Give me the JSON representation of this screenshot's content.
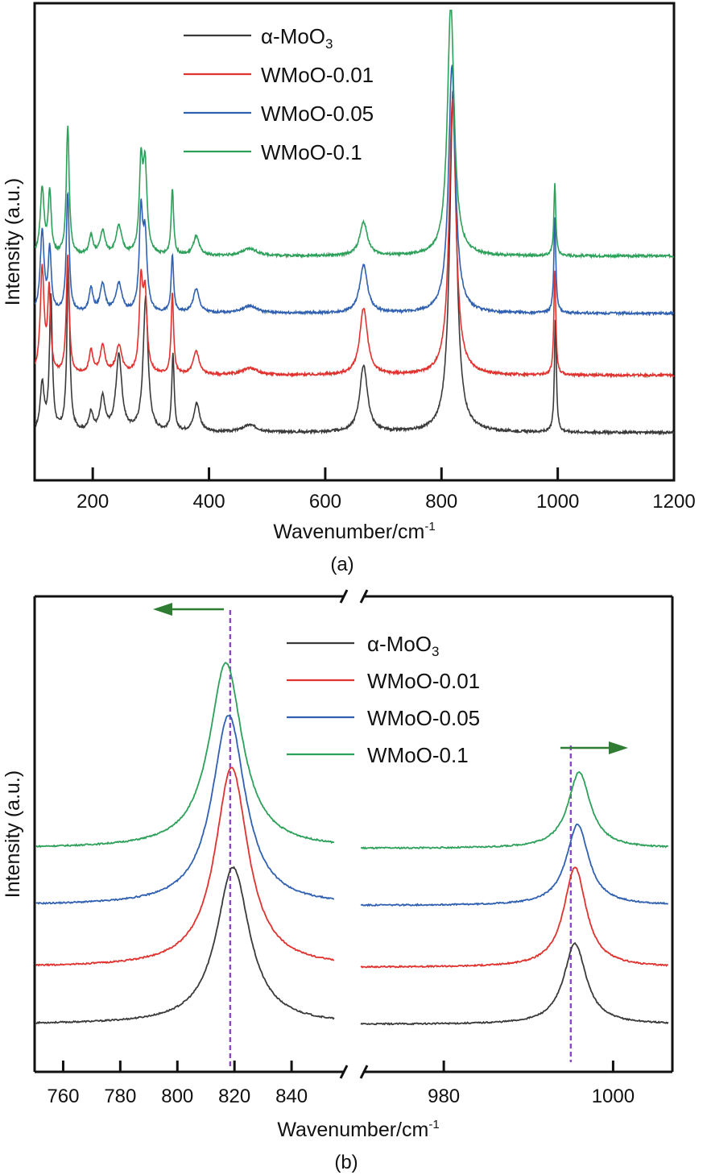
{
  "chart_data": [
    {
      "panel": "(a)",
      "type": "line",
      "xlabel_main": "Wavenumber/cm",
      "xlabel_sup": "-1",
      "ylabel": "Intensity (a.u.)",
      "xlim": [
        100,
        1200
      ],
      "x_ticks": [
        200,
        400,
        600,
        800,
        1000,
        1200
      ],
      "baselines": [
        0.1,
        0.22,
        0.35,
        0.47
      ],
      "series": [
        {
          "name": "α-MoO",
          "sub": "3",
          "color": "#3a3a3a",
          "peaks": [
            [
              113,
              0.1,
              4
            ],
            [
              128,
              0.28,
              3
            ],
            [
              158,
              0.34,
              3
            ],
            [
              197,
              0.04,
              4
            ],
            [
              217,
              0.07,
              5
            ],
            [
              245,
              0.16,
              6
            ],
            [
              291,
              0.28,
              5
            ],
            [
              338,
              0.16,
              2.5
            ],
            [
              379,
              0.06,
              6
            ],
            [
              470,
              0.015,
              15
            ],
            [
              666,
              0.14,
              8
            ],
            [
              820,
              0.72,
              7
            ],
            [
              996,
              0.24,
              2
            ]
          ]
        },
        {
          "name": "WMoO-0.01",
          "sub": "",
          "color": "#e0322e",
          "peaks": [
            [
              113,
              0.22,
              4
            ],
            [
              125,
              0.17,
              3
            ],
            [
              157,
              0.25,
              3
            ],
            [
              197,
              0.05,
              4
            ],
            [
              217,
              0.06,
              5
            ],
            [
              245,
              0.06,
              6
            ],
            [
              283,
              0.18,
              3.5
            ],
            [
              290,
              0.16,
              4
            ],
            [
              337,
              0.17,
              2.5
            ],
            [
              378,
              0.05,
              6
            ],
            [
              470,
              0.015,
              15
            ],
            [
              666,
              0.14,
              8
            ],
            [
              819,
              0.58,
              7
            ],
            [
              995,
              0.22,
              2
            ]
          ]
        },
        {
          "name": "WMoO-0.05",
          "sub": "",
          "color": "#3060b0",
          "peaks": [
            [
              113,
              0.17,
              4
            ],
            [
              126,
              0.13,
              3
            ],
            [
              157,
              0.25,
              3
            ],
            [
              197,
              0.05,
              4
            ],
            [
              217,
              0.06,
              5
            ],
            [
              245,
              0.06,
              6
            ],
            [
              283,
              0.2,
              3.5
            ],
            [
              290,
              0.15,
              4
            ],
            [
              337,
              0.12,
              2.5
            ],
            [
              378,
              0.05,
              6
            ],
            [
              470,
              0.015,
              15
            ],
            [
              666,
              0.1,
              8
            ],
            [
              818,
              0.52,
              7
            ],
            [
              995,
              0.2,
              2
            ]
          ]
        },
        {
          "name": "WMoO-0.1",
          "sub": "",
          "color": "#2da05a",
          "peaks": [
            [
              113,
              0.14,
              4
            ],
            [
              126,
              0.13,
              3
            ],
            [
              157,
              0.27,
              3
            ],
            [
              197,
              0.04,
              4
            ],
            [
              217,
              0.05,
              5
            ],
            [
              245,
              0.06,
              6
            ],
            [
              283,
              0.18,
              3.5
            ],
            [
              290,
              0.18,
              4
            ],
            [
              337,
              0.14,
              2.5
            ],
            [
              378,
              0.04,
              6
            ],
            [
              470,
              0.015,
              15
            ],
            [
              666,
              0.07,
              8
            ],
            [
              816,
              0.53,
              7
            ],
            [
              995,
              0.15,
              2
            ]
          ]
        }
      ]
    },
    {
      "panel": "(b)",
      "type": "line",
      "xlabel_main": "Wavenumber/cm",
      "xlabel_sup": "-1",
      "ylabel": "Intensity (a.u.)",
      "broken_axis": true,
      "xlim_left": [
        750,
        860
      ],
      "xlim_right": [
        970,
        1007
      ],
      "x_ticks_left": [
        760,
        780,
        800,
        820,
        840
      ],
      "x_ticks_right": [
        980,
        1000
      ],
      "dashed_lines_x": [
        818.5,
        995
      ],
      "baselines": [
        0.1,
        0.22,
        0.35,
        0.47
      ],
      "series": [
        {
          "name": "α-MoO",
          "sub": "3",
          "color": "#3a3a3a",
          "peak1": [
            819.5,
            0.33,
            7
          ],
          "peak2": [
            995.5,
            0.17,
            1.6
          ]
        },
        {
          "name": "WMoO-0.01",
          "sub": "",
          "color": "#e0322e",
          "peak1": [
            819,
            0.42,
            7
          ],
          "peak2": [
            995.5,
            0.21,
            1.6
          ]
        },
        {
          "name": "WMoO-0.05",
          "sub": "",
          "color": "#3060b0",
          "peak1": [
            818,
            0.4,
            7
          ],
          "peak2": [
            995.8,
            0.17,
            1.6
          ]
        },
        {
          "name": "WMoO-0.1",
          "sub": "",
          "color": "#2da05a",
          "peak1": [
            817,
            0.39,
            7
          ],
          "peak2": [
            996,
            0.16,
            1.6
          ]
        }
      ]
    }
  ]
}
